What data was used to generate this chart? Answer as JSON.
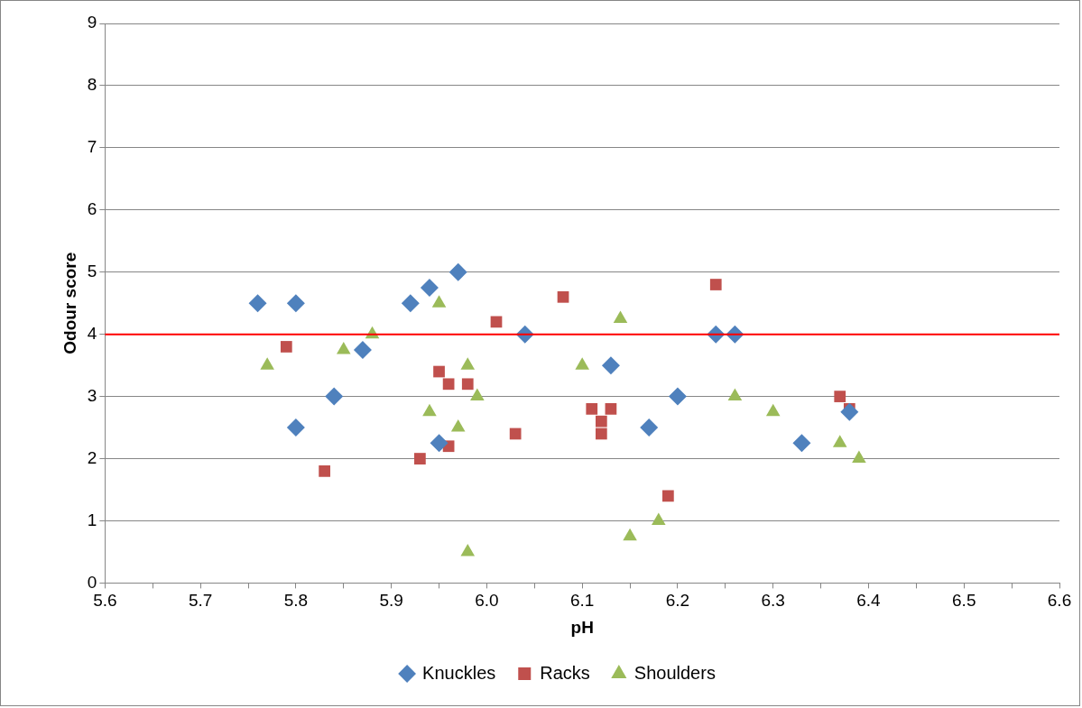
{
  "chart_data": {
    "type": "scatter",
    "xlabel": "pH",
    "ylabel": "Odour score",
    "xlim": [
      5.6,
      6.6
    ],
    "ylim": [
      0,
      9
    ],
    "xticks": [
      5.6,
      {
        "value": 5.65,
        "label": null
      },
      5.7,
      {
        "value": 5.75,
        "label": null
      },
      5.8,
      {
        "value": 5.85,
        "label": null
      },
      5.9,
      {
        "value": 5.95,
        "label": null
      },
      {
        "value": 6,
        "label": "6.0"
      },
      {
        "value": 6.05,
        "label": null
      },
      6.1,
      {
        "value": 6.15,
        "label": null
      },
      6.2,
      {
        "value": 6.25,
        "label": null
      },
      6.3,
      {
        "value": 6.35,
        "label": null
      },
      6.4,
      {
        "value": 6.45,
        "label": null
      },
      6.5,
      {
        "value": 6.55,
        "label": null
      },
      6.6
    ],
    "yticks": [
      0,
      1,
      2,
      3,
      4,
      5,
      6,
      7,
      8,
      9
    ],
    "grid": "y",
    "legend": "bottom",
    "ref_lines": [
      {
        "axis": "y",
        "value": 4,
        "color": "#ff0000",
        "line_style": "solid"
      }
    ],
    "series": [
      {
        "name": "Knuckles",
        "color": "#4f81bd",
        "marker": "diamond",
        "x": [
          5.76,
          5.8,
          5.8,
          5.84,
          5.87,
          5.92,
          5.94,
          5.97,
          5.95,
          6.04,
          6.13,
          6.17,
          6.2,
          6.24,
          6.26,
          6.33,
          6.38
        ],
        "values": [
          4.5,
          4.5,
          2.5,
          3,
          3.75,
          4.5,
          4.75,
          5,
          2.25,
          4,
          3.5,
          2.5,
          3,
          4,
          4,
          2.25,
          2.75
        ]
      },
      {
        "name": "Racks",
        "color": "#c0504d",
        "marker": "square",
        "x": [
          5.79,
          5.83,
          5.93,
          5.95,
          5.96,
          5.96,
          5.98,
          6.01,
          6.03,
          6.08,
          6.11,
          6.12,
          6.12,
          6.13,
          6.19,
          6.24,
          6.37,
          6.38
        ],
        "values": [
          3.8,
          1.8,
          2,
          3.4,
          3.2,
          2.2,
          3.2,
          4.2,
          2.4,
          4.6,
          2.8,
          2.6,
          2.4,
          2.8,
          1.4,
          4.8,
          3,
          2.8
        ]
      },
      {
        "name": "Shoulders",
        "color": "#9bbb59",
        "marker": "triangle",
        "x": [
          5.77,
          5.85,
          5.88,
          5.94,
          5.95,
          5.97,
          5.98,
          5.98,
          5.99,
          6.1,
          6.14,
          6.15,
          6.18,
          6.26,
          6.3,
          6.37,
          6.39
        ],
        "values": [
          3.5,
          3.75,
          4,
          2.75,
          4.5,
          2.5,
          3.5,
          0.5,
          3,
          3.5,
          4.25,
          0.75,
          1,
          3,
          2.75,
          2.25,
          2
        ]
      }
    ]
  }
}
